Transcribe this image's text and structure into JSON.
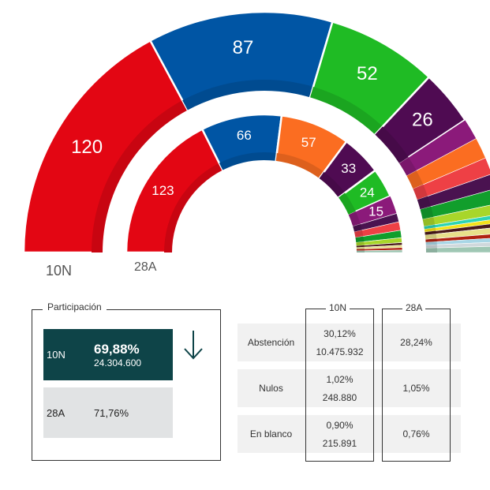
{
  "chart_data": {
    "type": "parliament-semicircle",
    "title": "",
    "total_seats": 350,
    "series": [
      {
        "name": "10N",
        "slices": [
          {
            "party": "red",
            "seats": 120,
            "color": "#e30613",
            "label": "120"
          },
          {
            "party": "blue",
            "seats": 87,
            "color": "#0055a4",
            "label": "87"
          },
          {
            "party": "green",
            "seats": 52,
            "color": "#1fbb24",
            "label": "52"
          },
          {
            "party": "dark-purple",
            "seats": 26,
            "color": "#4f0b52",
            "label": "26"
          },
          {
            "party": "magenta",
            "seats": 10,
            "color": "#8b1a7a",
            "label": ""
          },
          {
            "party": "orange",
            "seats": 10,
            "color": "#fb6d21",
            "label": ""
          },
          {
            "party": "coral",
            "seats": 8,
            "color": "#ee4045",
            "label": ""
          },
          {
            "party": "purple-2",
            "seats": 7,
            "color": "#4a1250",
            "label": ""
          },
          {
            "party": "green-2",
            "seats": 7,
            "color": "#119e2c",
            "label": ""
          },
          {
            "party": "lime",
            "seats": 5,
            "color": "#a8d62a",
            "label": ""
          },
          {
            "party": "teal",
            "seats": 2,
            "color": "#2dd4b5",
            "label": ""
          },
          {
            "party": "yellow",
            "seats": 2,
            "color": "#f5e21a",
            "label": ""
          },
          {
            "party": "maroon",
            "seats": 2,
            "color": "#4a1a1a",
            "label": ""
          },
          {
            "party": "pale-yellow",
            "seats": 3,
            "color": "#e8e08a",
            "label": ""
          },
          {
            "party": "dark-red",
            "seats": 2,
            "color": "#b02212",
            "label": ""
          },
          {
            "party": "light-blue",
            "seats": 2,
            "color": "#a8d6e6",
            "label": ""
          },
          {
            "party": "grey",
            "seats": 2,
            "color": "#cfd8dc",
            "label": ""
          },
          {
            "party": "mint",
            "seats": 3,
            "color": "#9fc7b4",
            "label": ""
          }
        ]
      },
      {
        "name": "28A",
        "slices": [
          {
            "party": "red",
            "seats": 123,
            "color": "#e30613",
            "label": "123"
          },
          {
            "party": "blue",
            "seats": 66,
            "color": "#0055a4",
            "label": "66"
          },
          {
            "party": "orange",
            "seats": 57,
            "color": "#fb6d21",
            "label": "57"
          },
          {
            "party": "dark-purple",
            "seats": 33,
            "color": "#4f0b52",
            "label": "33"
          },
          {
            "party": "green",
            "seats": 24,
            "color": "#1fbb24",
            "label": "24"
          },
          {
            "party": "magenta",
            "seats": 15,
            "color": "#8b1a7a",
            "label": "15"
          },
          {
            "party": "purple-2",
            "seats": 7,
            "color": "#4a1250",
            "label": ""
          },
          {
            "party": "coral",
            "seats": 7,
            "color": "#ee4045",
            "label": ""
          },
          {
            "party": "green-2",
            "seats": 6,
            "color": "#119e2c",
            "label": ""
          },
          {
            "party": "lime",
            "seats": 4,
            "color": "#a8d62a",
            "label": ""
          },
          {
            "party": "maroon",
            "seats": 2,
            "color": "#4a1a1a",
            "label": ""
          },
          {
            "party": "pale-yellow",
            "seats": 2,
            "color": "#e8e08a",
            "label": ""
          },
          {
            "party": "dark-red",
            "seats": 2,
            "color": "#b02212",
            "label": ""
          },
          {
            "party": "grey",
            "seats": 2,
            "color": "#9fc7b4",
            "label": ""
          }
        ]
      }
    ],
    "ring_labels": [
      "10N",
      "28A"
    ]
  },
  "participation": {
    "title": "Participación",
    "current": {
      "label": "10N",
      "percent": "69,88%",
      "votes": "24.304.600"
    },
    "previous": {
      "label": "28A",
      "percent": "71,76%"
    },
    "trend_icon": "arrow-down-icon"
  },
  "stats_table": {
    "columns": [
      "10N",
      "28A"
    ],
    "rows": [
      {
        "label": "Abstención",
        "c10n_pct": "30,12%",
        "c10n_abs": "10.475.932",
        "c28a": "28,24%"
      },
      {
        "label": "Nulos",
        "c10n_pct": "1,02%",
        "c10n_abs": "248.880",
        "c28a": "1,05%"
      },
      {
        "label": "En blanco",
        "c10n_pct": "0,90%",
        "c10n_abs": "215.891",
        "c28a": "0,76%"
      }
    ]
  }
}
